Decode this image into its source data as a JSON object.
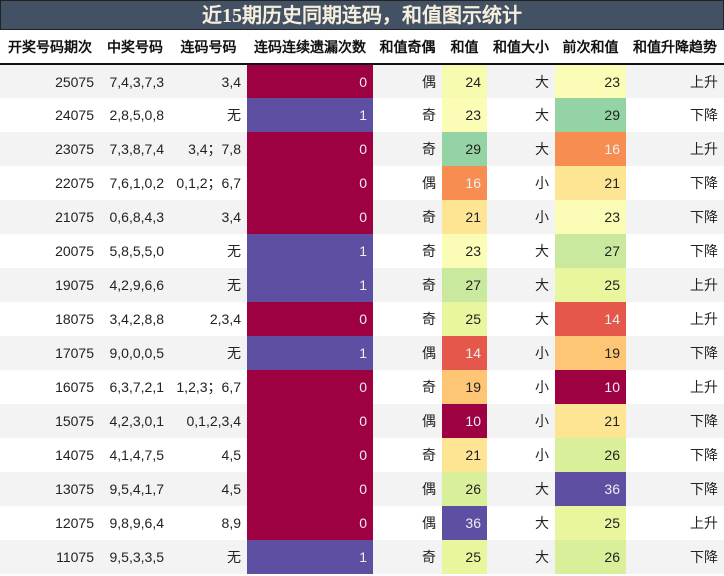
{
  "title": "近15期历史同期连码，和值图示统计",
  "headers": [
    "开奖号码期次",
    "中奖号码",
    "连码号码",
    "连码连续遗漏次数",
    "和值奇偶",
    "和值",
    "和值大小",
    "前次和值",
    "和值升降趋势"
  ],
  "colors": {
    "0": "#9e0142",
    "1": "#5e4fa2",
    "10": "#9e0142",
    "14": "#e5574b",
    "16": "#f88d52",
    "19": "#fec574",
    "21": "#fee593",
    "23": "#fbfdb6",
    "24": "#f6fbb0",
    "25": "#e9f69e",
    "26": "#d9ef9a",
    "27": "#c8e99e",
    "29": "#94d4a4",
    "36": "#5e4fa2"
  },
  "light_text_values": [
    "0",
    "1",
    "10",
    "14",
    "16",
    "36"
  ],
  "rows": [
    [
      "25075",
      "7,4,3,7,3",
      "3,4",
      "0",
      "偶",
      "24",
      "大",
      "23",
      "上升"
    ],
    [
      "24075",
      "2,8,5,0,8",
      "无",
      "1",
      "奇",
      "23",
      "大",
      "29",
      "下降"
    ],
    [
      "23075",
      "7,3,8,7,4",
      "3,4；7,8",
      "0",
      "奇",
      "29",
      "大",
      "16",
      "上升"
    ],
    [
      "22075",
      "7,6,1,0,2",
      "0,1,2；6,7",
      "0",
      "偶",
      "16",
      "小",
      "21",
      "下降"
    ],
    [
      "21075",
      "0,6,8,4,3",
      "3,4",
      "0",
      "奇",
      "21",
      "小",
      "23",
      "下降"
    ],
    [
      "20075",
      "5,8,5,5,0",
      "无",
      "1",
      "奇",
      "23",
      "大",
      "27",
      "下降"
    ],
    [
      "19075",
      "4,2,9,6,6",
      "无",
      "1",
      "奇",
      "27",
      "大",
      "25",
      "上升"
    ],
    [
      "18075",
      "3,4,2,8,8",
      "2,3,4",
      "0",
      "奇",
      "25",
      "大",
      "14",
      "上升"
    ],
    [
      "17075",
      "9,0,0,0,5",
      "无",
      "1",
      "偶",
      "14",
      "小",
      "19",
      "下降"
    ],
    [
      "16075",
      "6,3,7,2,1",
      "1,2,3；6,7",
      "0",
      "奇",
      "19",
      "小",
      "10",
      "上升"
    ],
    [
      "15075",
      "4,2,3,0,1",
      "0,1,2,3,4",
      "0",
      "偶",
      "10",
      "小",
      "21",
      "下降"
    ],
    [
      "14075",
      "4,1,4,7,5",
      "4,5",
      "0",
      "奇",
      "21",
      "小",
      "26",
      "下降"
    ],
    [
      "13075",
      "9,5,4,1,7",
      "4,5",
      "0",
      "偶",
      "26",
      "大",
      "36",
      "下降"
    ],
    [
      "12075",
      "9,8,9,6,4",
      "8,9",
      "0",
      "偶",
      "36",
      "大",
      "25",
      "上升"
    ],
    [
      "11075",
      "9,5,3,3,5",
      "无",
      "1",
      "奇",
      "25",
      "大",
      "26",
      "下降"
    ]
  ]
}
